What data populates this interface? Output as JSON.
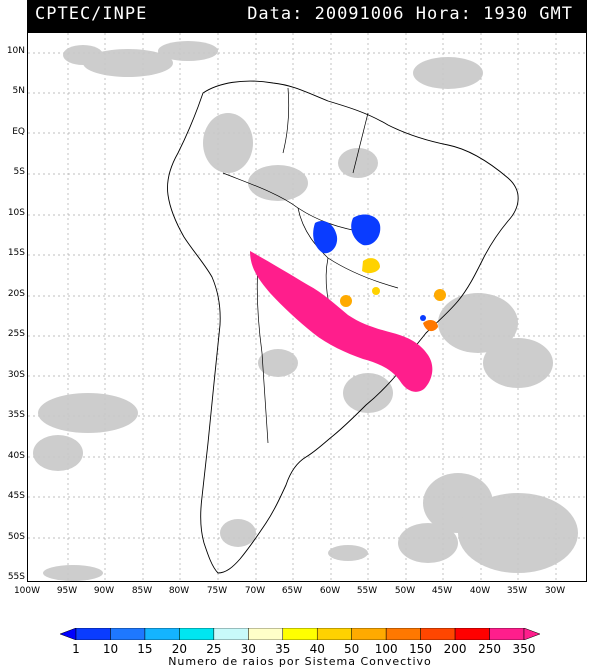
{
  "header": {
    "source": "CPTEC/INPE",
    "datetime": "Data: 20091006 Hora: 1930 GMT"
  },
  "lat_labels": [
    "10N",
    "5N",
    "EQ",
    "5S",
    "10S",
    "15S",
    "20S",
    "25S",
    "30S",
    "35S",
    "40S",
    "45S",
    "50S",
    "55S"
  ],
  "lon_labels": [
    "100W",
    "95W",
    "90W",
    "85W",
    "80W",
    "75W",
    "70W",
    "65W",
    "60W",
    "55W",
    "50W",
    "45W",
    "40W",
    "35W",
    "30W"
  ],
  "colorbar": {
    "ticks": [
      "1",
      "10",
      "15",
      "20",
      "25",
      "30",
      "35",
      "40",
      "50",
      "100",
      "150",
      "200",
      "250",
      "350"
    ],
    "colors": [
      "#0000ff",
      "#0a3cff",
      "#1e78ff",
      "#14b4ff",
      "#00e6f0",
      "#c8fafa",
      "#ffffc8",
      "#ffff00",
      "#ffd200",
      "#ffaa00",
      "#ff7800",
      "#ff4600",
      "#ff0000",
      "#ff1e8c"
    ],
    "title": "Numero de raios por Sistema Convectivo"
  }
}
